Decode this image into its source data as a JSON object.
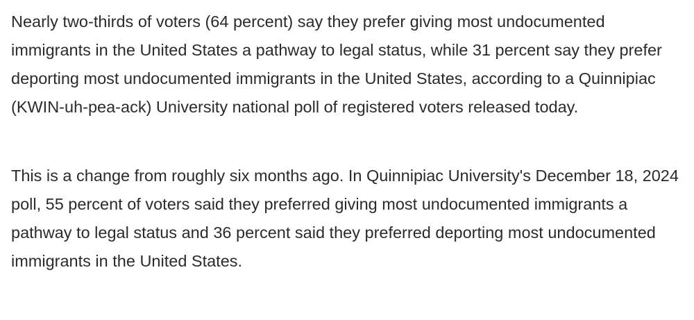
{
  "article": {
    "paragraphs": [
      "Nearly two-thirds of voters (64 percent) say they prefer giving most undocumented immigrants in the United States a pathway to legal status, while 31 percent say they prefer deporting most undocumented immigrants in the United States, according to a Quinnipiac (KWIN-uh-pea-ack) University national poll of registered voters released today.",
      "This is a change from roughly six months ago. In Quinnipiac University's December 18, 2024 poll, 55 percent of voters said they preferred giving most undocumented immigrants a pathway to legal status and 36 percent said they preferred deporting most undocumented immigrants in the United States."
    ]
  }
}
